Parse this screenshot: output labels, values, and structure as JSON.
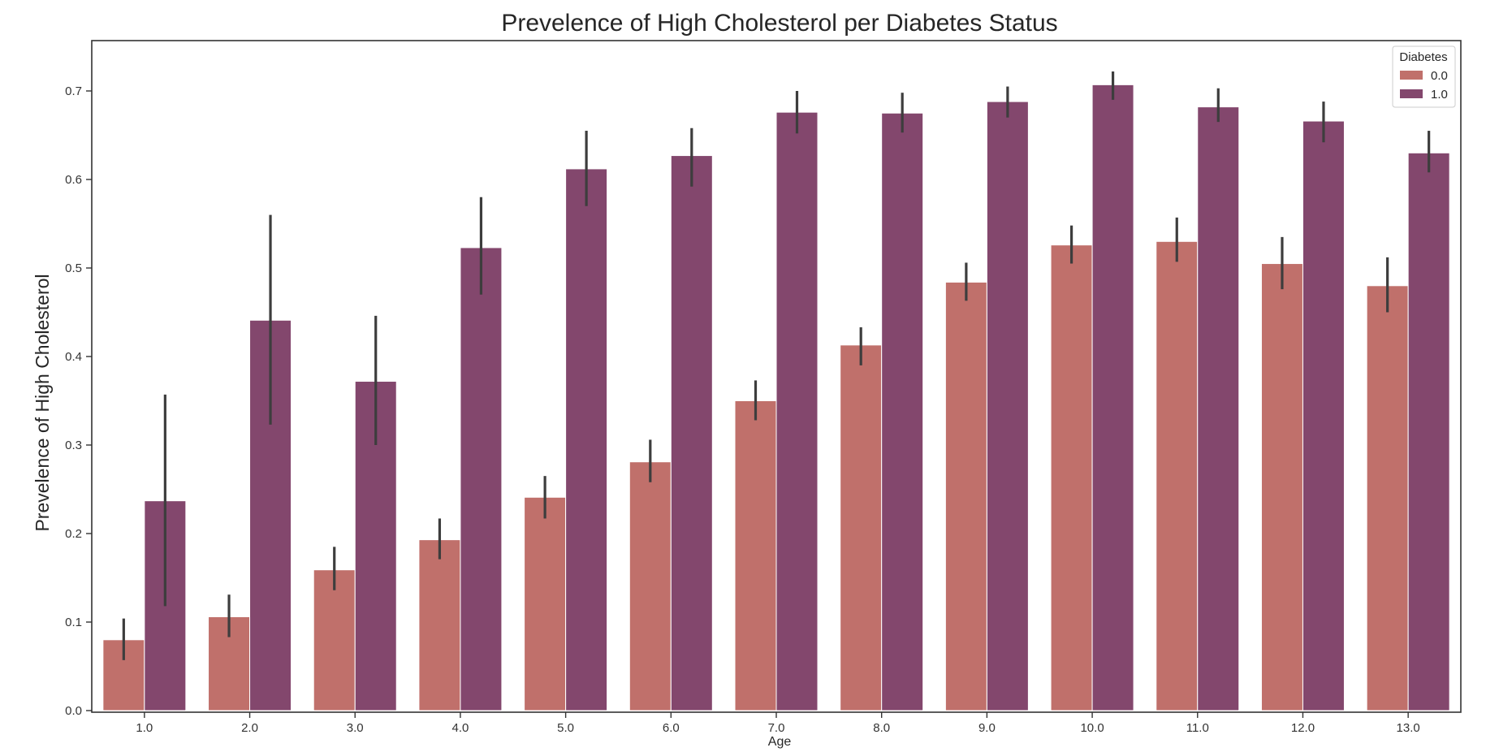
{
  "chart_data": {
    "type": "bar",
    "title": "Prevelence of High Cholesterol per Diabetes Status",
    "xlabel": "Age",
    "ylabel": "Prevelence of High Cholesterol",
    "categories": [
      "1.0",
      "2.0",
      "3.0",
      "4.0",
      "5.0",
      "6.0",
      "7.0",
      "8.0",
      "9.0",
      "10.0",
      "11.0",
      "12.0",
      "13.0"
    ],
    "ylim": [
      0,
      0.76
    ],
    "yticks": [
      "0.0",
      "0.1",
      "0.2",
      "0.3",
      "0.4",
      "0.5",
      "0.6",
      "0.7"
    ],
    "grid": false,
    "legend": {
      "title": "Diabetes",
      "placement": "top-right"
    },
    "series": [
      {
        "name": "0.0",
        "color": "#c0706b",
        "values": [
          0.08,
          0.106,
          0.159,
          0.193,
          0.241,
          0.281,
          0.35,
          0.413,
          0.484,
          0.526,
          0.53,
          0.505,
          0.48
        ],
        "err_low": [
          0.057,
          0.083,
          0.136,
          0.171,
          0.217,
          0.258,
          0.328,
          0.39,
          0.463,
          0.505,
          0.507,
          0.476,
          0.45
        ],
        "err_high": [
          0.104,
          0.131,
          0.185,
          0.217,
          0.265,
          0.306,
          0.373,
          0.433,
          0.506,
          0.548,
          0.557,
          0.535,
          0.512
        ]
      },
      {
        "name": "1.0",
        "color": "#83476d",
        "values": [
          0.237,
          0.441,
          0.372,
          0.523,
          0.612,
          0.627,
          0.676,
          0.675,
          0.688,
          0.707,
          0.682,
          0.666,
          0.63
        ],
        "err_low": [
          0.118,
          0.323,
          0.3,
          0.47,
          0.57,
          0.592,
          0.652,
          0.653,
          0.67,
          0.69,
          0.665,
          0.642,
          0.608
        ],
        "err_high": [
          0.357,
          0.56,
          0.446,
          0.58,
          0.655,
          0.658,
          0.7,
          0.698,
          0.705,
          0.722,
          0.703,
          0.688,
          0.655
        ]
      }
    ]
  }
}
